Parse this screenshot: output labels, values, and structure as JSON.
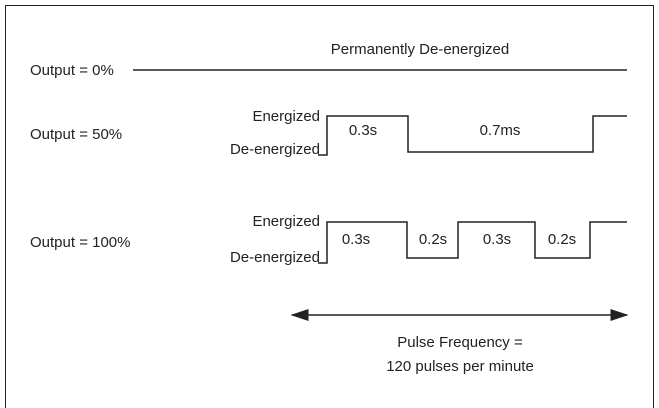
{
  "rows": [
    {
      "label": "Output = 0%",
      "annotation": "Permanently De-energized"
    },
    {
      "label": "Output = 50%",
      "high": "Energized",
      "low": "De-energized",
      "durations": [
        "0.3s",
        "0.7ms"
      ]
    },
    {
      "label": "Output = 100%",
      "high": "Energized",
      "low": "De-energized",
      "durations": [
        "0.3s",
        "0.2s",
        "0.3s",
        "0.2s"
      ]
    }
  ],
  "frequency": {
    "line1": "Pulse Frequency =",
    "line2": "120 pulses per minute"
  }
}
